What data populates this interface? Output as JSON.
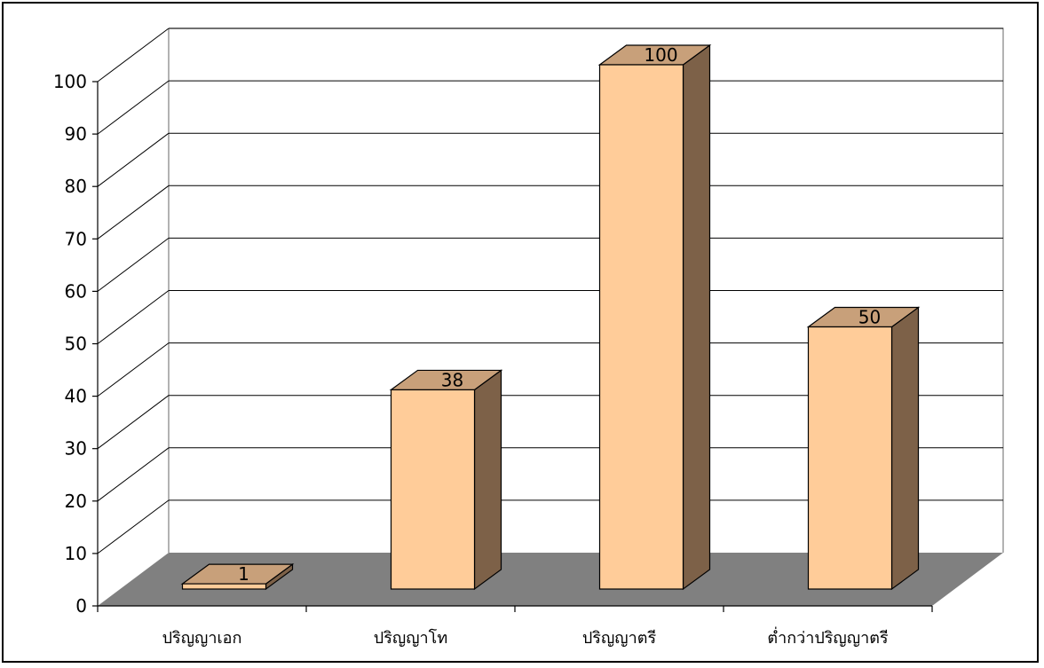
{
  "chart_data": {
    "type": "bar",
    "style": "3d-column",
    "categories": [
      "ปริญญาเอก",
      "ปริญญาโท",
      "ปริญญาตรี",
      "ต่ำกว่าปริญญาตรี"
    ],
    "values": [
      1,
      38,
      100,
      50
    ],
    "data_labels": [
      "1",
      "38",
      "100",
      "50"
    ],
    "yticks": [
      "0",
      "10",
      "20",
      "30",
      "40",
      "50",
      "60",
      "70",
      "80",
      "90",
      "100"
    ],
    "ylim": [
      0,
      100
    ],
    "grid": true,
    "legend": "none",
    "title": "",
    "xlabel": "",
    "ylabel": ""
  },
  "colors": {
    "bar_front": "#FFCC99",
    "bar_top": "#C8A07A",
    "bar_side": "#7D6148",
    "floor": "#808080",
    "gridline": "#000000",
    "wall_edge": "#808080"
  }
}
